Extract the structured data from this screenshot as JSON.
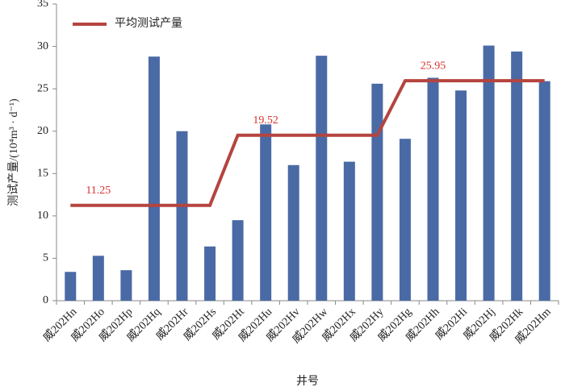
{
  "chart_data": {
    "type": "bar",
    "x_label": "井号",
    "y_label": "测试产量/(10⁴m³ · d⁻¹)",
    "categories": [
      "威202Hn",
      "威202Ho",
      "威202Hp",
      "威202Hq",
      "威202Hr",
      "威202Hs",
      "威202Ht",
      "威202Hu",
      "威202Hv",
      "威202Hw",
      "威202Hx",
      "威202Hy",
      "威202Hg",
      "威202Hh",
      "威202Hi",
      "威202Hj",
      "威202Hk",
      "威202Hm"
    ],
    "series": [
      {
        "type": "bar",
        "color": "#4a6aa5",
        "values": [
          3.4,
          5.3,
          3.6,
          28.8,
          20.0,
          6.4,
          9.5,
          20.8,
          16.0,
          28.9,
          16.4,
          25.6,
          19.1,
          26.3,
          24.8,
          30.1,
          29.4,
          25.9
        ]
      },
      {
        "type": "line",
        "name": "平均测试产量",
        "color": "#b5443f",
        "label_color": "#d9302c",
        "values": [
          11.25,
          11.25,
          11.25,
          11.25,
          11.25,
          11.25,
          19.52,
          19.52,
          19.52,
          19.52,
          19.52,
          19.52,
          25.95,
          25.95,
          25.95,
          25.95,
          25.95,
          25.95
        ],
        "value_labels": [
          null,
          "11.25",
          null,
          null,
          null,
          null,
          null,
          "19.52",
          null,
          null,
          null,
          null,
          null,
          "25.95",
          null,
          null,
          null,
          null
        ]
      }
    ],
    "ylim": [
      0,
      35
    ],
    "yticks": [
      0,
      5,
      10,
      15,
      20,
      25,
      30,
      35
    ],
    "grid": false,
    "legend": "upper left"
  }
}
